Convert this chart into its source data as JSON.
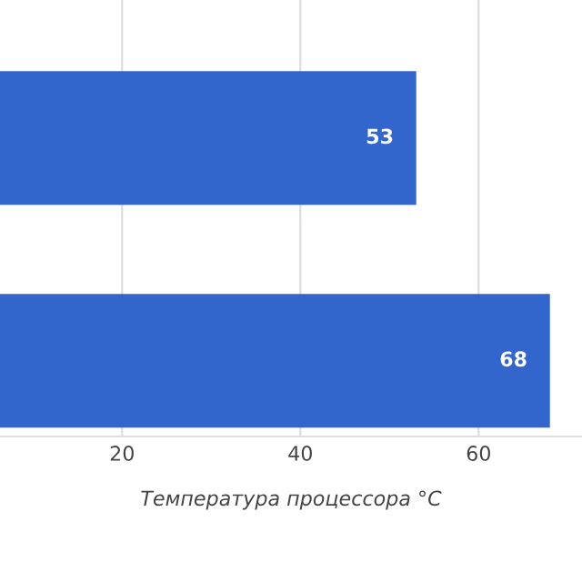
{
  "chart_data": {
    "type": "bar",
    "orientation": "horizontal",
    "categories": [
      null,
      null
    ],
    "values": [
      53,
      68
    ],
    "color": "#3366cc",
    "data_labels": true,
    "xlabel": "Температура процессора °C",
    "xlim": [
      6.3,
      71.6
    ],
    "xticks": [
      20,
      40,
      60
    ],
    "grid": "x",
    "tick_labels": "x",
    "legend": false
  }
}
